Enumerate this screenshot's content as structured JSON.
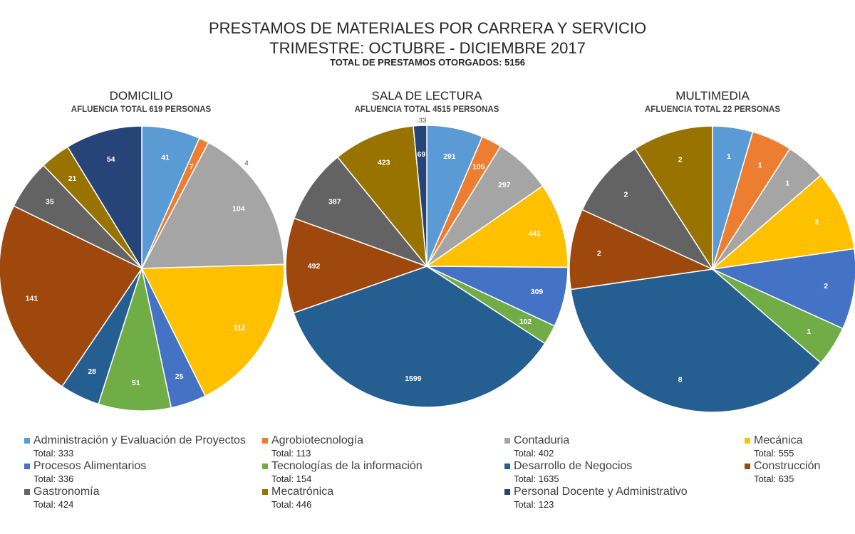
{
  "title": {
    "line1": "PRESTAMOS DE MATERIALES POR CARRERA Y SERVICIO",
    "line2": "TRIMESTRE: OCTUBRE - DICIEMBRE 2017",
    "line3": "TOTAL DE PRESTAMOS OTORGADOS: 5156"
  },
  "categories": [
    {
      "name": "Administración y Evaluación de Proyectos",
      "color": "#5b9bd5",
      "total": "Total: 333"
    },
    {
      "name": "Agrobiotecnología",
      "color": "#ed7d31",
      "total": "Total: 113"
    },
    {
      "name": "Contaduria",
      "color": "#a5a5a5",
      "total": "Total: 402"
    },
    {
      "name": "Mecánica",
      "color": "#ffc000",
      "total": "Total: 555"
    },
    {
      "name": "Procesos Alimentarios",
      "color": "#4472c4",
      "total": "Total: 336"
    },
    {
      "name": "Tecnologías de la información",
      "color": "#70ad47",
      "total": "Total: 154"
    },
    {
      "name": "Desarrollo de Negocios",
      "color": "#255e91",
      "total": "Total: 1635"
    },
    {
      "name": "Construcción",
      "color": "#9e480e",
      "total": "Total: 635"
    },
    {
      "name": "Gastronomía",
      "color": "#636363",
      "total": "Total: 424"
    },
    {
      "name": "Mecatrónica",
      "color": "#997300",
      "total": "Total: 446"
    },
    {
      "name": "Personal Docente y Administrativo",
      "color": "#264478",
      "total": "Total: 123"
    }
  ],
  "chart_data": [
    {
      "type": "pie",
      "title": "DOMICILIO",
      "subtitle": "AFLUENCIA TOTAL 619 PERSONAS",
      "categories": [
        "Administración y Evaluación de Proyectos",
        "Agrobiotecnología",
        "Contaduria",
        "Mecánica",
        "Procesos Alimentarios",
        "Tecnologías de la información",
        "Desarrollo de Negocios",
        "Construcción",
        "Gastronomía",
        "Mecatrónica",
        "Personal Docente y Administrativo"
      ],
      "values": [
        41,
        7,
        104,
        112,
        25,
        51,
        28,
        141,
        35,
        21,
        54
      ],
      "labels": [
        "41",
        "7",
        "104",
        "112",
        "25",
        "51",
        "28",
        "141",
        "35",
        "21",
        "54"
      ],
      "extra_label": "4"
    },
    {
      "type": "pie",
      "title": "SALA DE LECTURA",
      "subtitle": "AFLUENCIA TOTAL 4515 PERSONAS",
      "categories": [
        "Administración y Evaluación de Proyectos",
        "Agrobiotecnología",
        "Contaduria",
        "Mecánica",
        "Procesos Alimentarios",
        "Tecnologías de la información",
        "Desarrollo de Negocios",
        "Construcción",
        "Gastronomía",
        "Mecatrónica",
        "Personal Docente y Administrativo"
      ],
      "values": [
        291,
        105,
        297,
        441,
        309,
        102,
        1599,
        492,
        387,
        423,
        69
      ],
      "labels": [
        "291",
        "105",
        "297",
        "441",
        "309",
        "102",
        "1599",
        "492",
        "387",
        "423",
        "69"
      ],
      "extra_label": "33"
    },
    {
      "type": "pie",
      "title": "MULTIMEDIA",
      "subtitle": "AFLUENCIA TOTAL 22 PERSONAS",
      "categories": [
        "Administración y Evaluación de Proyectos",
        "Agrobiotecnología",
        "Contaduria",
        "Mecánica",
        "Procesos Alimentarios",
        "Tecnologías de la información",
        "Desarrollo de Negocios",
        "Construcción",
        "Gastronomía",
        "Mecatrónica",
        "Personal Docente y Administrativo"
      ],
      "values": [
        1,
        1,
        1,
        2,
        2,
        1,
        8,
        2,
        2,
        2,
        0
      ],
      "labels": [
        "1",
        "1",
        "1",
        "2",
        "2",
        "1",
        "8",
        "2",
        "2",
        "2",
        ""
      ]
    }
  ]
}
